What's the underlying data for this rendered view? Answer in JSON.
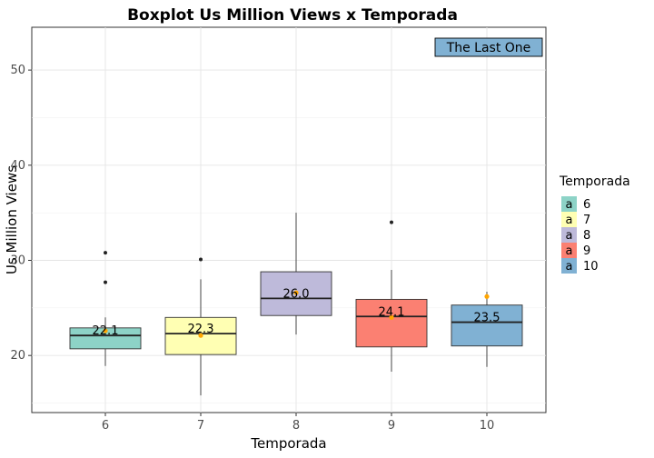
{
  "chart_data": {
    "type": "box",
    "title": "Boxplot Us Million Views x Temporada",
    "xlabel": "Temporada",
    "ylabel": "Us Million Views",
    "ylim": [
      14,
      54.5
    ],
    "y_ticks": [
      20,
      30,
      40,
      50
    ],
    "grid": true,
    "categories": [
      "6",
      "7",
      "8",
      "9",
      "10"
    ],
    "boxes": [
      {
        "category": "6",
        "whisker_low": 18.9,
        "q1": 20.7,
        "median": 22.1,
        "q3": 22.9,
        "whisker_high": 24.0,
        "outliers": [
          27.7,
          30.8
        ],
        "mean": 22.6,
        "median_label": "22.1",
        "color": "#8DD3C7"
      },
      {
        "category": "7",
        "whisker_low": 15.8,
        "q1": 20.1,
        "median": 22.3,
        "q3": 24.0,
        "whisker_high": 28.0,
        "outliers": [
          30.1
        ],
        "mean": 22.1,
        "median_label": "22.3",
        "color": "#FFFFB3"
      },
      {
        "category": "8",
        "whisker_low": 22.2,
        "q1": 24.2,
        "median": 26.0,
        "q3": 28.8,
        "whisker_high": 35.0,
        "outliers": [],
        "mean": 26.6,
        "median_label": "26.0",
        "color": "#BEBADA"
      },
      {
        "category": "9",
        "whisker_low": 18.3,
        "q1": 20.9,
        "median": 24.1,
        "q3": 25.9,
        "whisker_high": 29.0,
        "outliers": [
          34.0
        ],
        "mean": 24.0,
        "median_label": "24.1",
        "color": "#FB8072"
      },
      {
        "category": "10",
        "whisker_low": 18.8,
        "q1": 21.0,
        "median": 23.5,
        "q3": 25.3,
        "whisker_high": 26.7,
        "outliers": [],
        "mean": 26.2,
        "median_label": "23.5",
        "color": "#80B1D3"
      }
    ],
    "mean_marker_color": "#FFA500",
    "annotation": {
      "text": "The Last One",
      "color": "#80B1D3",
      "placement": "top-right"
    },
    "legend": {
      "title": "Temporada",
      "placement": "right",
      "glyph": "a",
      "entries": [
        {
          "label": "6",
          "color": "#8DD3C7"
        },
        {
          "label": "7",
          "color": "#FFFFB3"
        },
        {
          "label": "8",
          "color": "#BEBADA"
        },
        {
          "label": "9",
          "color": "#FB8072"
        },
        {
          "label": "10",
          "color": "#80B1D3"
        }
      ]
    }
  }
}
